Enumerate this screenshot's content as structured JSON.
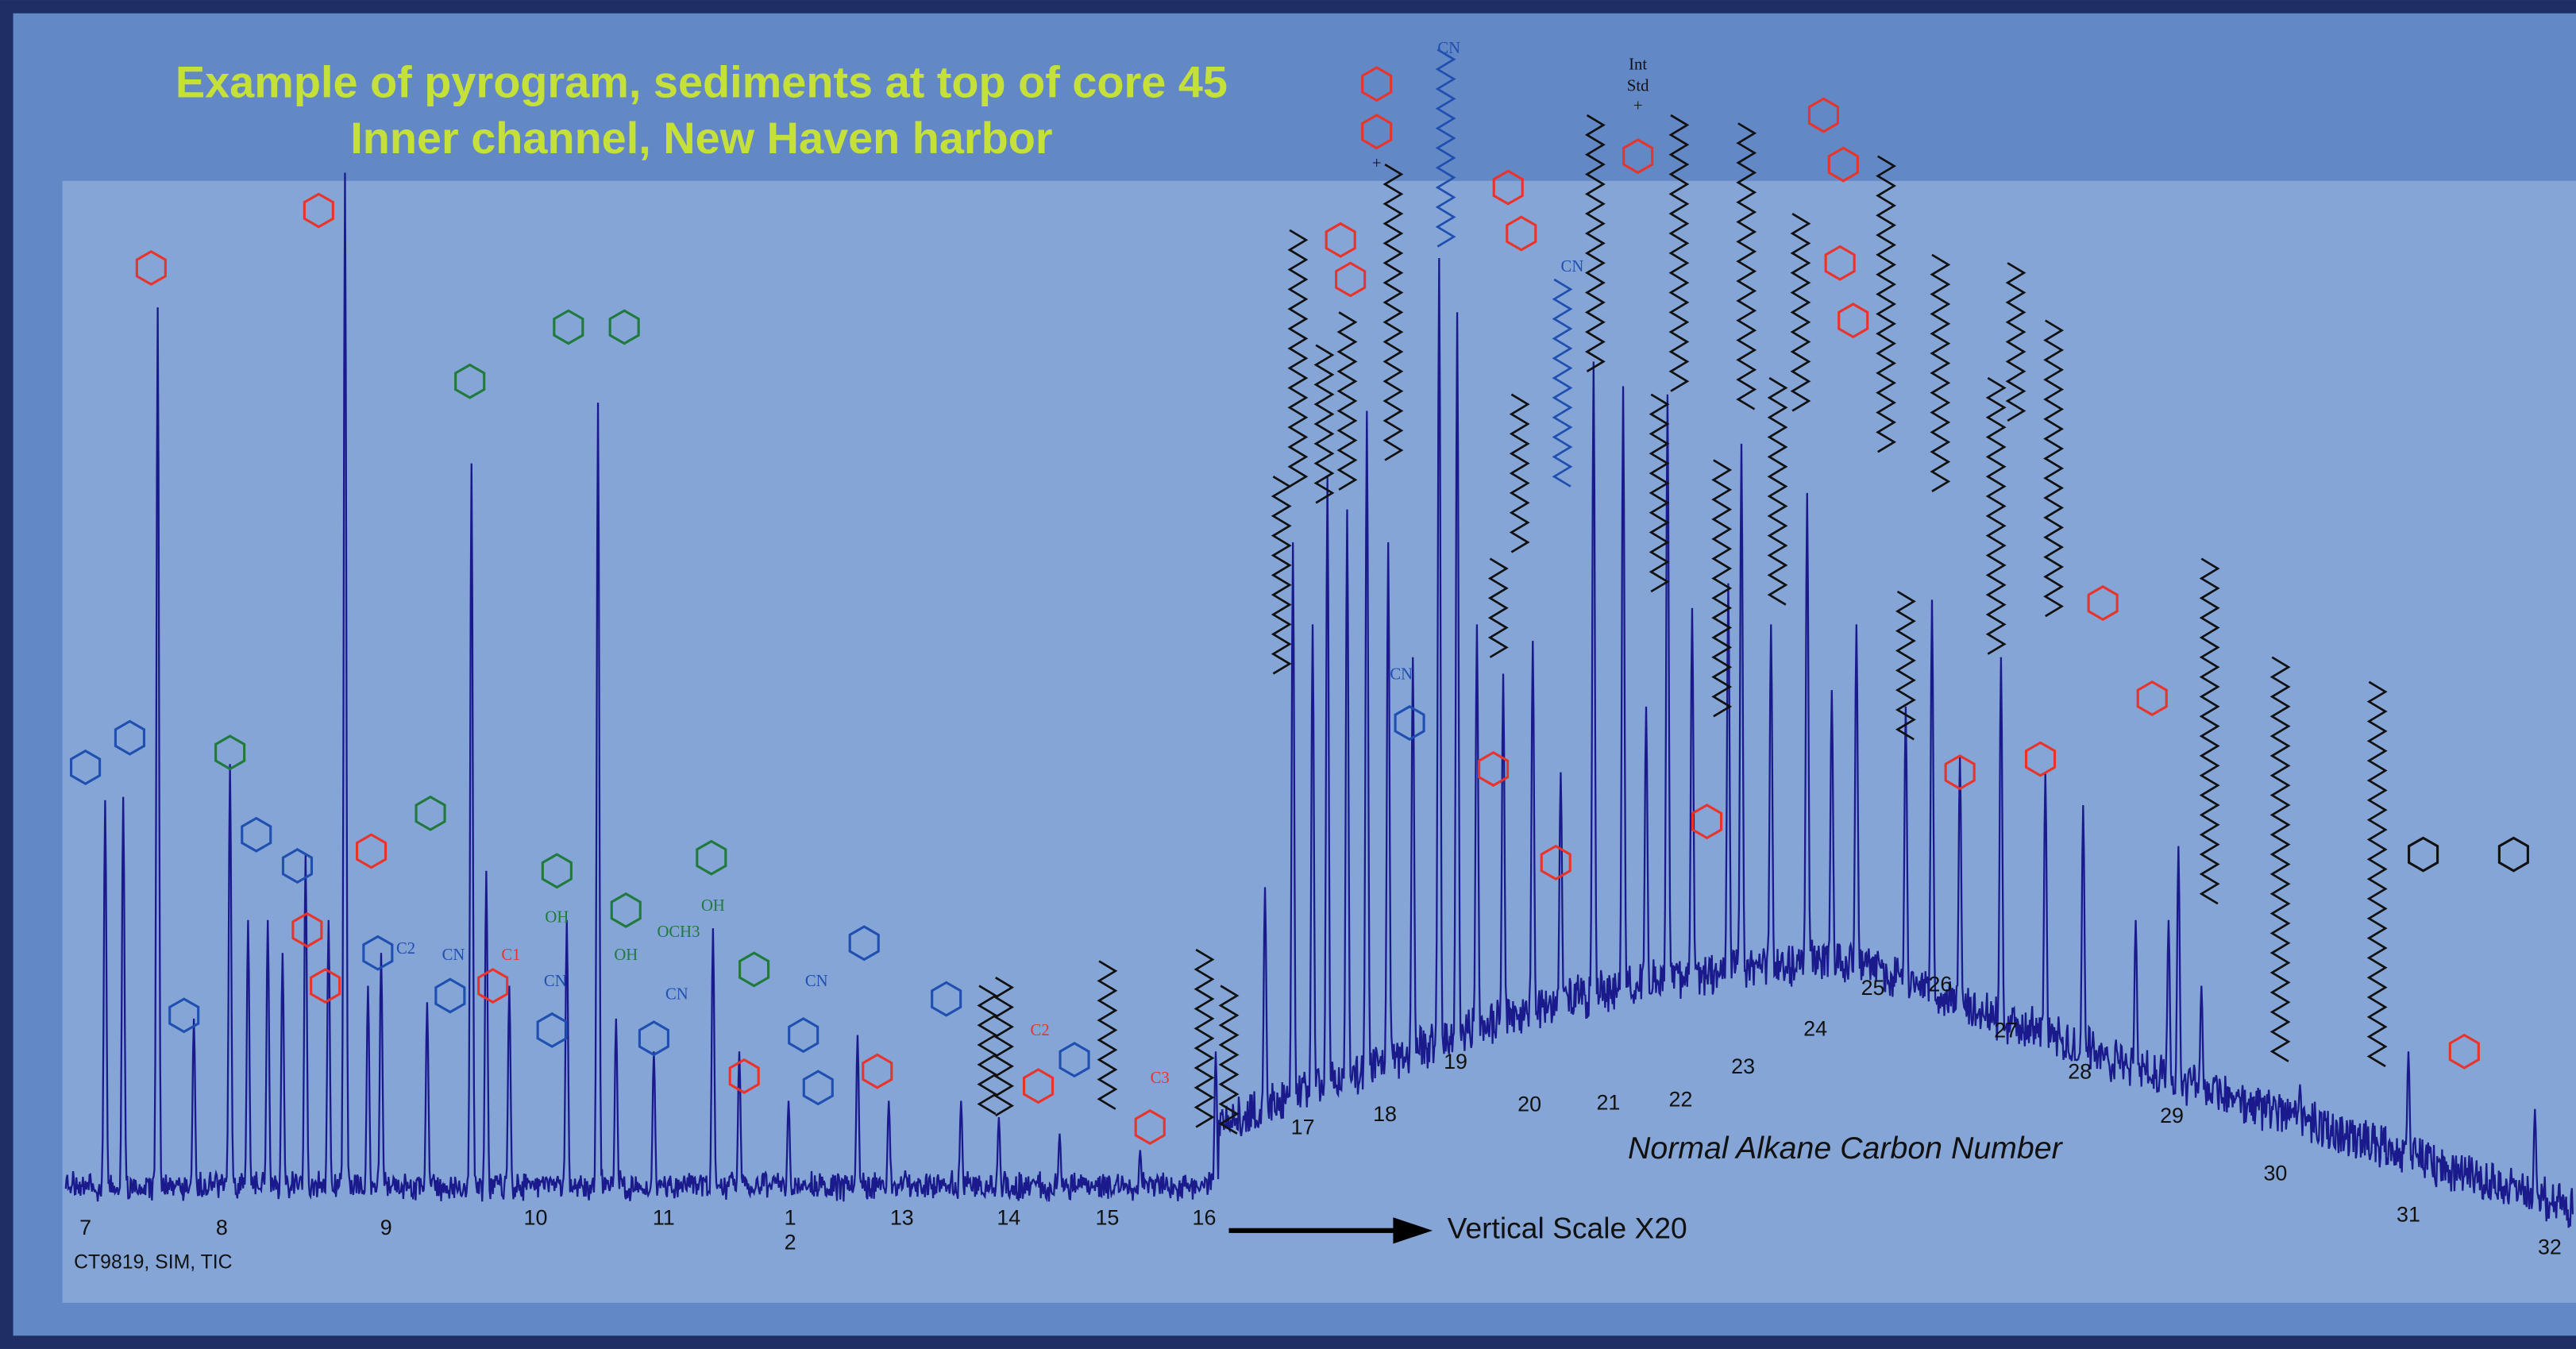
{
  "header": {
    "title_lines": [
      "Example of pyrogram, sediments at top of core 45",
      "Inner channel, New Haven harbor"
    ]
  },
  "carbon_numbers": [
    "7",
    "8",
    "9",
    "10",
    "11",
    "1",
    "2",
    "13",
    "14",
    "15",
    "16",
    "17",
    "18",
    "19",
    "20",
    "21",
    "22",
    "23",
    "24",
    "25",
    "26",
    "27",
    "28",
    "29",
    "30",
    "31",
    "32"
  ],
  "axis_label": "Normal Alkane Carbon Number",
  "scale_note": "Vertical Scale X20",
  "sample_id": "CT9819, SIM, TIC",
  "structure_labels": [
    "Int",
    "Std",
    "+",
    "+",
    "CN",
    "CN",
    "CN",
    "CN",
    "CN",
    "CN",
    "CN",
    "OH",
    "OH",
    "OH",
    "OCH3",
    "C2",
    "C2",
    "C3",
    "C1"
  ]
}
